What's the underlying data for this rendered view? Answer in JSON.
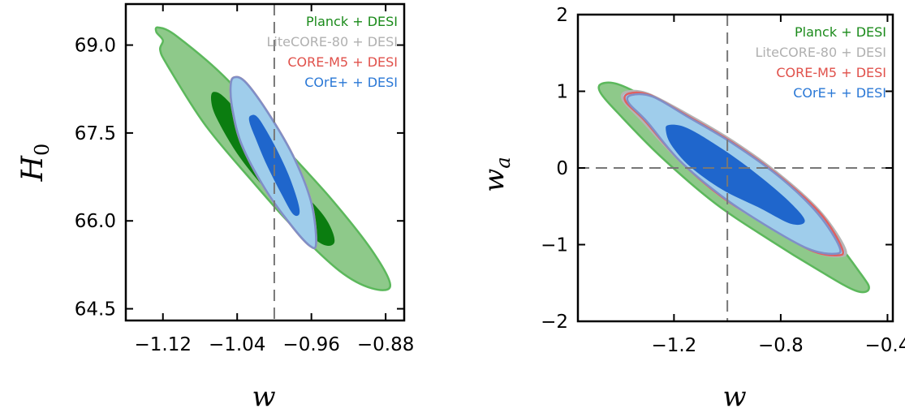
{
  "colors": {
    "planck_outer": "#8ec98a",
    "planck_inner": "#0b7d10",
    "planck_edge": "#5cb85c",
    "lite_edge": "#b5b5b5",
    "core_edge": "#e06060",
    "coreplus_outer": "#9fcdeb",
    "coreplus_inner": "#1f66cc",
    "coreplus_edge": "#7f8fc8"
  },
  "chart_data": [
    {
      "type": "contour",
      "xlabel": "w",
      "ylabel": "H",
      "ylabel_sub": "0",
      "xlim": [
        -1.16,
        -0.86
      ],
      "ylim": [
        64.3,
        69.7
      ],
      "xticks": [
        -1.12,
        -1.04,
        -0.96,
        -0.88
      ],
      "xtick_labels": [
        "−1.12",
        "−1.04",
        "−0.96",
        "−0.88"
      ],
      "yticks": [
        64.5,
        66.0,
        67.5,
        69.0
      ],
      "ytick_labels": [
        "64.5",
        "66.0",
        "67.5",
        "69.0"
      ],
      "reference_lines": {
        "x": -1.0
      },
      "legend": {
        "placement": "top-right",
        "entries": [
          {
            "label": "Planck + DESI",
            "color": "#1a8a1a"
          },
          {
            "label": "LiteCORE-80 + DESI",
            "color": "#b0b0b0"
          },
          {
            "label": "CORE-M5 + DESI",
            "color": "#e0504a"
          },
          {
            "label": "COrE+ + DESI",
            "color": "#2a78d6"
          }
        ]
      },
      "series": [
        {
          "name": "Planck + DESI",
          "level": "95%",
          "points": [
            [
              -1.125,
              69.3
            ],
            [
              -1.105,
              69.15
            ],
            [
              -1.05,
              68.4
            ],
            [
              -1.0,
              67.45
            ],
            [
              -0.94,
              66.4
            ],
            [
              -0.895,
              65.5
            ],
            [
              -0.875,
              64.9
            ],
            [
              -0.895,
              64.85
            ],
            [
              -0.93,
              65.15
            ],
            [
              -0.98,
              65.9
            ],
            [
              -1.025,
              66.7
            ],
            [
              -1.075,
              67.65
            ],
            [
              -1.115,
              68.65
            ],
            [
              -1.123,
              68.92
            ],
            [
              -1.12,
              69.08
            ],
            [
              -1.127,
              69.22
            ]
          ]
        },
        {
          "name": "Planck + DESI",
          "level": "68%",
          "points": [
            [
              -1.065,
              68.2
            ],
            [
              -1.05,
              68.05
            ],
            [
              -1.01,
              67.3
            ],
            [
              -0.975,
              66.6
            ],
            [
              -0.945,
              66.05
            ],
            [
              -0.935,
              65.65
            ],
            [
              -0.948,
              65.6
            ],
            [
              -0.975,
              65.95
            ],
            [
              -1.01,
              66.55
            ],
            [
              -1.04,
              67.15
            ],
            [
              -1.062,
              67.75
            ],
            [
              -1.068,
              68.05
            ]
          ]
        },
        {
          "name": "LiteCORE-80 + DESI",
          "level": "95%",
          "points": [
            [
              -1.043,
              68.45
            ],
            [
              -1.03,
              68.35
            ],
            [
              -1.003,
              67.75
            ],
            [
              -0.978,
              67.05
            ],
            [
              -0.96,
              66.3
            ],
            [
              -0.955,
              65.62
            ],
            [
              -0.962,
              65.58
            ],
            [
              -0.983,
              65.95
            ],
            [
              -1.01,
              66.55
            ],
            [
              -1.035,
              67.3
            ],
            [
              -1.045,
              67.9
            ],
            [
              -1.047,
              68.3
            ]
          ]
        },
        {
          "name": "CORE-M5 + DESI",
          "level": "95%",
          "points": [
            [
              -1.043,
              68.45
            ],
            [
              -1.03,
              68.35
            ],
            [
              -1.003,
              67.75
            ],
            [
              -0.978,
              67.05
            ],
            [
              -0.96,
              66.3
            ],
            [
              -0.955,
              65.62
            ],
            [
              -0.962,
              65.58
            ],
            [
              -0.983,
              65.95
            ],
            [
              -1.01,
              66.55
            ],
            [
              -1.035,
              67.3
            ],
            [
              -1.045,
              67.9
            ],
            [
              -1.047,
              68.3
            ]
          ]
        },
        {
          "name": "COrE+ + DESI",
          "level": "95%",
          "points": [
            [
              -1.043,
              68.45
            ],
            [
              -1.03,
              68.35
            ],
            [
              -1.003,
              67.75
            ],
            [
              -0.978,
              67.05
            ],
            [
              -0.96,
              66.3
            ],
            [
              -0.955,
              65.62
            ],
            [
              -0.962,
              65.58
            ],
            [
              -0.983,
              65.95
            ],
            [
              -1.01,
              66.55
            ],
            [
              -1.035,
              67.3
            ],
            [
              -1.045,
              67.9
            ],
            [
              -1.047,
              68.3
            ]
          ]
        },
        {
          "name": "COrE+ + DESI",
          "level": "68%",
          "points": [
            [
              -1.025,
              67.8
            ],
            [
              -1.017,
              67.75
            ],
            [
              -1.0,
              67.3
            ],
            [
              -0.985,
              66.8
            ],
            [
              -0.975,
              66.35
            ],
            [
              -0.973,
              66.12
            ],
            [
              -0.98,
              66.12
            ],
            [
              -0.992,
              66.45
            ],
            [
              -1.008,
              66.95
            ],
            [
              -1.02,
              67.4
            ],
            [
              -1.027,
              67.7
            ]
          ]
        }
      ]
    },
    {
      "type": "contour",
      "xlabel": "w",
      "ylabel": "w",
      "ylabel_sub": "a",
      "xlim": [
        -1.56,
        -0.38
      ],
      "ylim": [
        -2.0,
        2.0
      ],
      "xticks": [
        -1.2,
        -0.8,
        -0.4
      ],
      "xtick_labels": [
        "−1.2",
        "−0.8",
        "−0.4"
      ],
      "yticks": [
        -2,
        -1,
        0,
        1,
        2
      ],
      "ytick_labels": [
        "−2",
        "−1",
        "0",
        "1",
        "2"
      ],
      "reference_lines": {
        "x": -1.0,
        "y": 0.0
      },
      "legend": {
        "placement": "top-right",
        "entries": [
          {
            "label": "Planck + DESI",
            "color": "#1a8a1a"
          },
          {
            "label": "LiteCORE-80 + DESI",
            "color": "#b0b0b0"
          },
          {
            "label": "CORE-M5 + DESI",
            "color": "#e0504a"
          },
          {
            "label": "COrE+ + DESI",
            "color": "#2a78d6"
          }
        ]
      },
      "series": [
        {
          "name": "Planck + DESI",
          "level": "95%",
          "points": [
            [
              -1.47,
              1.1
            ],
            [
              -1.4,
              1.08
            ],
            [
              -1.25,
              0.82
            ],
            [
              -1.05,
              0.42
            ],
            [
              -0.85,
              -0.12
            ],
            [
              -0.65,
              -0.72
            ],
            [
              -0.5,
              -1.38
            ],
            [
              -0.47,
              -1.58
            ],
            [
              -0.52,
              -1.6
            ],
            [
              -0.65,
              -1.35
            ],
            [
              -0.85,
              -0.92
            ],
            [
              -1.05,
              -0.45
            ],
            [
              -1.25,
              0.15
            ],
            [
              -1.4,
              0.68
            ],
            [
              -1.475,
              0.98
            ]
          ]
        },
        {
          "name": "LiteCORE-80 + DESI",
          "level": "95%",
          "points": [
            [
              -1.38,
              0.99
            ],
            [
              -1.3,
              0.97
            ],
            [
              -1.15,
              0.7
            ],
            [
              -0.98,
              0.35
            ],
            [
              -0.8,
              -0.1
            ],
            [
              -0.65,
              -0.58
            ],
            [
              -0.56,
              -1.05
            ],
            [
              -0.58,
              -1.15
            ],
            [
              -0.68,
              -1.08
            ],
            [
              -0.85,
              -0.75
            ],
            [
              -1.02,
              -0.38
            ],
            [
              -1.18,
              0.1
            ],
            [
              -1.32,
              0.62
            ],
            [
              -1.39,
              0.88
            ]
          ]
        },
        {
          "name": "CORE-M5 + DESI",
          "level": "95%",
          "points": [
            [
              -1.37,
              0.97
            ],
            [
              -1.29,
              0.95
            ],
            [
              -1.15,
              0.68
            ],
            [
              -0.98,
              0.33
            ],
            [
              -0.8,
              -0.12
            ],
            [
              -0.65,
              -0.6
            ],
            [
              -0.57,
              -1.05
            ],
            [
              -0.59,
              -1.14
            ],
            [
              -0.69,
              -1.07
            ],
            [
              -0.85,
              -0.75
            ],
            [
              -1.02,
              -0.38
            ],
            [
              -1.18,
              0.1
            ],
            [
              -1.31,
              0.62
            ],
            [
              -1.38,
              0.86
            ]
          ]
        },
        {
          "name": "COrE+ + DESI",
          "level": "95%",
          "points": [
            [
              -1.36,
              0.95
            ],
            [
              -1.28,
              0.93
            ],
            [
              -1.15,
              0.67
            ],
            [
              -0.98,
              0.32
            ],
            [
              -0.8,
              -0.13
            ],
            [
              -0.66,
              -0.6
            ],
            [
              -0.58,
              -1.03
            ],
            [
              -0.6,
              -1.12
            ],
            [
              -0.7,
              -1.05
            ],
            [
              -0.86,
              -0.74
            ],
            [
              -1.02,
              -0.37
            ],
            [
              -1.18,
              0.1
            ],
            [
              -1.3,
              0.6
            ],
            [
              -1.37,
              0.85
            ]
          ]
        },
        {
          "name": "COrE+ + DESI",
          "level": "68%",
          "points": [
            [
              -1.22,
              0.56
            ],
            [
              -1.15,
              0.52
            ],
            [
              -1.02,
              0.25
            ],
            [
              -0.9,
              -0.05
            ],
            [
              -0.78,
              -0.4
            ],
            [
              -0.71,
              -0.68
            ],
            [
              -0.76,
              -0.73
            ],
            [
              -0.88,
              -0.52
            ],
            [
              -1.02,
              -0.28
            ],
            [
              -1.14,
              0.02
            ],
            [
              -1.21,
              0.3
            ],
            [
              -1.23,
              0.48
            ]
          ]
        }
      ]
    }
  ]
}
